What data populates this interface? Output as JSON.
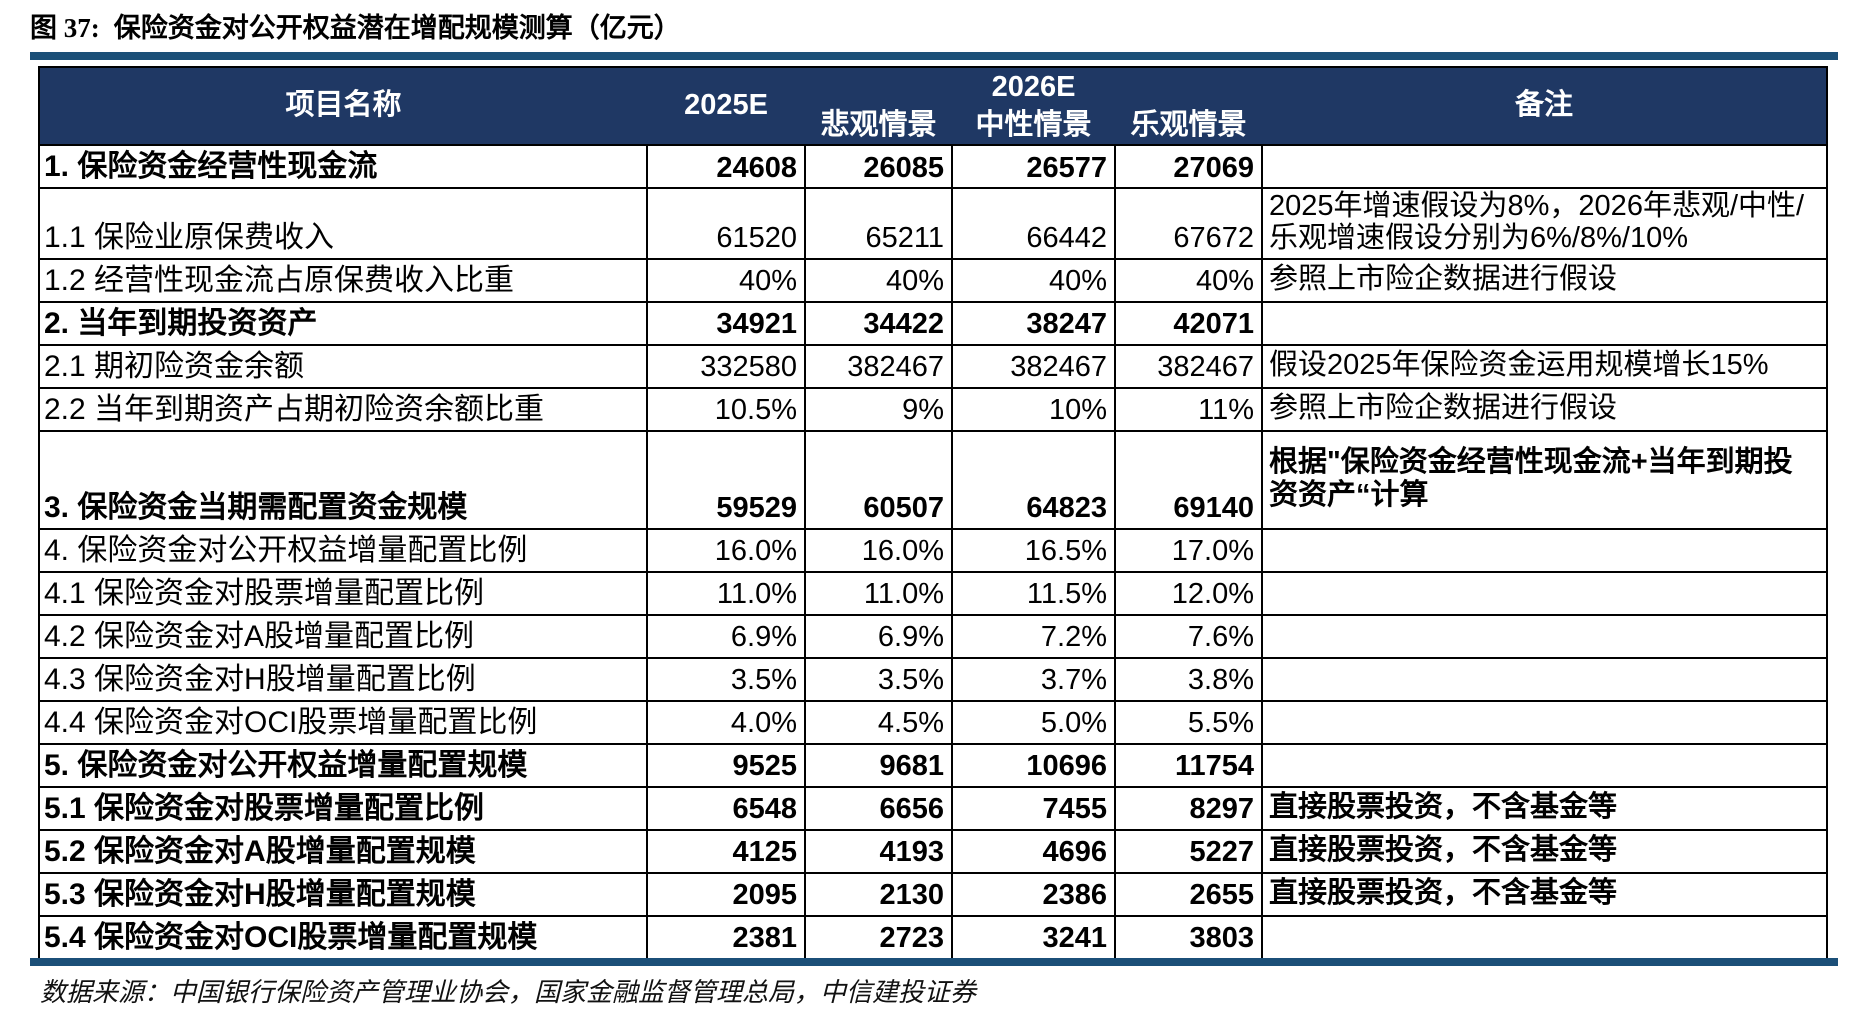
{
  "figure": {
    "title_prefix": "图 37:",
    "title_text": "保险资金对公开权益潜在增配规模测算（亿元）"
  },
  "colors": {
    "header_bg": "#1F3864",
    "rule_blue": "#1B4F78"
  },
  "table": {
    "header": {
      "col_item": "项目名称",
      "col_2025": "2025E",
      "col_2026": "2026E",
      "scenarios": [
        "悲观情景",
        "中性情景",
        "乐观情景"
      ],
      "col_remark": "备注"
    },
    "rows": [
      {
        "label": "1. 保险资金经营性现金流",
        "values": [
          "24608",
          "26085",
          "26577",
          "27069"
        ],
        "remark": "",
        "bold": true,
        "remark_bold": false
      },
      {
        "label": "1.1 保险业原保费收入",
        "values": [
          "61520",
          "65211",
          "66442",
          "67672"
        ],
        "remark": "2025年增速假设为8%，2026年悲观/中性/乐观增速假设分别为6%/8%/10%",
        "bold": false,
        "remark_bold": false
      },
      {
        "label": "1.2 经营性现金流占原保费收入比重",
        "values": [
          "40%",
          "40%",
          "40%",
          "40%"
        ],
        "remark": "参照上市险企数据进行假设",
        "bold": false,
        "remark_bold": false
      },
      {
        "label": "2. 当年到期投资资产",
        "values": [
          "34921",
          "34422",
          "38247",
          "42071"
        ],
        "remark": "",
        "bold": true,
        "remark_bold": false
      },
      {
        "label": "2.1 期初险资金余额",
        "values": [
          "332580",
          "382467",
          "382467",
          "382467"
        ],
        "remark": "假设2025年保险资金运用规模增长15%",
        "bold": false,
        "remark_bold": false
      },
      {
        "label": "2.2 当年到期资产占期初险资余额比重",
        "values": [
          "10.5%",
          "9%",
          "10%",
          "11%"
        ],
        "remark": "参照上市险企数据进行假设",
        "bold": false,
        "remark_bold": false
      },
      {
        "label": "3. 保险资金当期需配置资金规模",
        "values": [
          "59529",
          "60507",
          "64823",
          "69140"
        ],
        "remark": "根据\"保险资金经营性现金流+当年到期投资资产“计算",
        "bold": true,
        "remark_bold": true
      },
      {
        "label": "4. 保险资金对公开权益增量配置比例",
        "values": [
          "16.0%",
          "16.0%",
          "16.5%",
          "17.0%"
        ],
        "remark": "",
        "bold": false,
        "remark_bold": false
      },
      {
        "label": "4.1 保险资金对股票增量配置比例",
        "values": [
          "11.0%",
          "11.0%",
          "11.5%",
          "12.0%"
        ],
        "remark": "",
        "bold": false,
        "remark_bold": false
      },
      {
        "label": "4.2 保险资金对A股增量配置比例",
        "values": [
          "6.9%",
          "6.9%",
          "7.2%",
          "7.6%"
        ],
        "remark": "",
        "bold": false,
        "remark_bold": false
      },
      {
        "label": "4.3 保险资金对H股增量配置比例",
        "values": [
          "3.5%",
          "3.5%",
          "3.7%",
          "3.8%"
        ],
        "remark": "",
        "bold": false,
        "remark_bold": false
      },
      {
        "label": "4.4 保险资金对OCI股票增量配置比例",
        "values": [
          "4.0%",
          "4.5%",
          "5.0%",
          "5.5%"
        ],
        "remark": "",
        "bold": false,
        "remark_bold": false
      },
      {
        "label": "5. 保险资金对公开权益增量配置规模",
        "values": [
          "9525",
          "9681",
          "10696",
          "11754"
        ],
        "remark": "",
        "bold": true,
        "remark_bold": false
      },
      {
        "label": "5.1 保险资金对股票增量配置比例",
        "values": [
          "6548",
          "6656",
          "7455",
          "8297"
        ],
        "remark": "直接股票投资，不含基金等",
        "bold": true,
        "remark_bold": true
      },
      {
        "label": "5.2 保险资金对A股增量配置规模",
        "values": [
          "4125",
          "4193",
          "4696",
          "5227"
        ],
        "remark": "直接股票投资，不含基金等",
        "bold": true,
        "remark_bold": true
      },
      {
        "label": "5.3 保险资金对H股增量配置规模",
        "values": [
          "2095",
          "2130",
          "2386",
          "2655"
        ],
        "remark": "直接股票投资，不含基金等",
        "bold": true,
        "remark_bold": true
      },
      {
        "label": "5.4 保险资金对OCI股票增量配置规模",
        "values": [
          "2381",
          "2723",
          "3241",
          "3803"
        ],
        "remark": "",
        "bold": true,
        "remark_bold": false
      }
    ]
  },
  "footer": {
    "source": "数据来源：中国银行保险资产管理业协会，国家金融监督管理总局，中信建投证券"
  }
}
